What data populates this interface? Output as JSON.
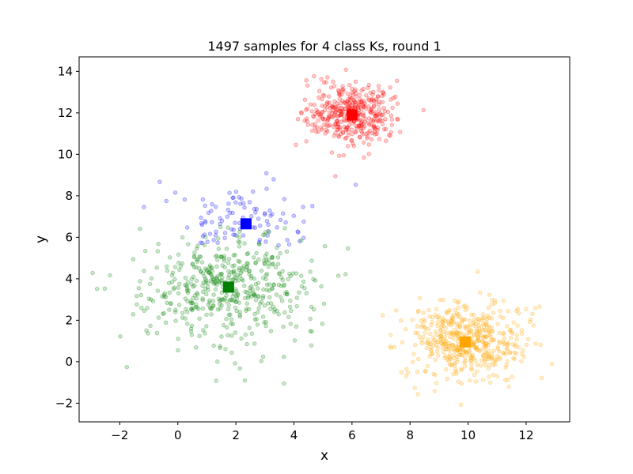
{
  "chart_data": {
    "type": "scatter",
    "title": "1497 samples for 4 class Ks, round 1",
    "xlabel": "x",
    "ylabel": "y",
    "xlim": [
      -3.4,
      13.5
    ],
    "ylim": [
      -2.9,
      14.7
    ],
    "xticks": [
      -2,
      0,
      2,
      4,
      6,
      8,
      10,
      12
    ],
    "yticks": [
      -2,
      0,
      2,
      4,
      6,
      8,
      10,
      12,
      14
    ],
    "xtick_labels": [
      "−2",
      "0",
      "2",
      "4",
      "6",
      "8",
      "10",
      "12"
    ],
    "ytick_labels": [
      "−2",
      "0",
      "2",
      "4",
      "6",
      "8",
      "10",
      "12",
      "14"
    ],
    "grid": false,
    "legend": "none",
    "clusters": [
      {
        "color": "#ff0000",
        "center": [
          6.0,
          11.9
        ],
        "spread": [
          0.75,
          0.75
        ],
        "count": 400
      },
      {
        "color": "#0000ff",
        "center": [
          2.35,
          6.65
        ],
        "spread": [
          1.2,
          1.0
        ],
        "count": 100,
        "y_min": 5.6
      },
      {
        "color": "#008000",
        "center": [
          1.7,
          3.6
        ],
        "spread": [
          1.5,
          1.45
        ],
        "count": 500,
        "y_max": 6.5
      },
      {
        "color": "#ffa500",
        "center": [
          9.9,
          1.0
        ],
        "spread": [
          1.05,
          0.95
        ],
        "count": 497
      }
    ],
    "centroids": [
      {
        "color": "#ff0000",
        "x": 6.0,
        "y": 11.9
      },
      {
        "color": "#0000ff",
        "x": 2.35,
        "y": 6.65
      },
      {
        "color": "#008000",
        "x": 1.75,
        "y": 3.6
      },
      {
        "color": "#ffa500",
        "x": 9.9,
        "y": 0.95
      }
    ]
  }
}
